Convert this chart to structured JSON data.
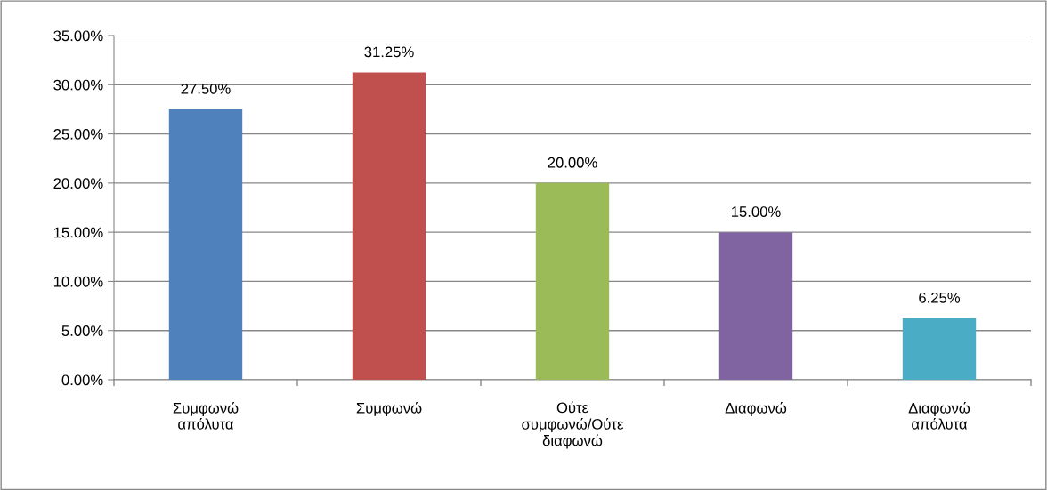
{
  "chart_data": {
    "type": "bar",
    "categories": [
      "Συμφωνώ\nαπόλυτα",
      "Συμφωνώ",
      "Ούτε\nσυμφωνώ/Ούτε\nδιαφωνώ",
      "Διαφωνώ",
      "Διαφωνώ\nαπόλυτα"
    ],
    "values": [
      27.5,
      31.25,
      20,
      15,
      6.25
    ],
    "colors": [
      "#4f81bd",
      "#c0504d",
      "#9bbb59",
      "#8064a2",
      "#4bacc6"
    ],
    "value_labels": [
      "27.50%",
      "31.25%",
      "20.00%",
      "15.00%",
      "6.25%"
    ],
    "ylim": [
      0,
      35
    ],
    "yticks": [
      {
        "value": 0,
        "label": "0.00%"
      },
      {
        "value": 5,
        "label": "5.00%"
      },
      {
        "value": 10,
        "label": "10.00%"
      },
      {
        "value": 15,
        "label": "15.00%"
      },
      {
        "value": 20,
        "label": "20.00%"
      },
      {
        "value": 25,
        "label": "25.00%"
      },
      {
        "value": 30,
        "label": "30.00%"
      },
      {
        "value": 35,
        "label": "35.00%"
      }
    ],
    "grid": "y",
    "legend": false
  }
}
